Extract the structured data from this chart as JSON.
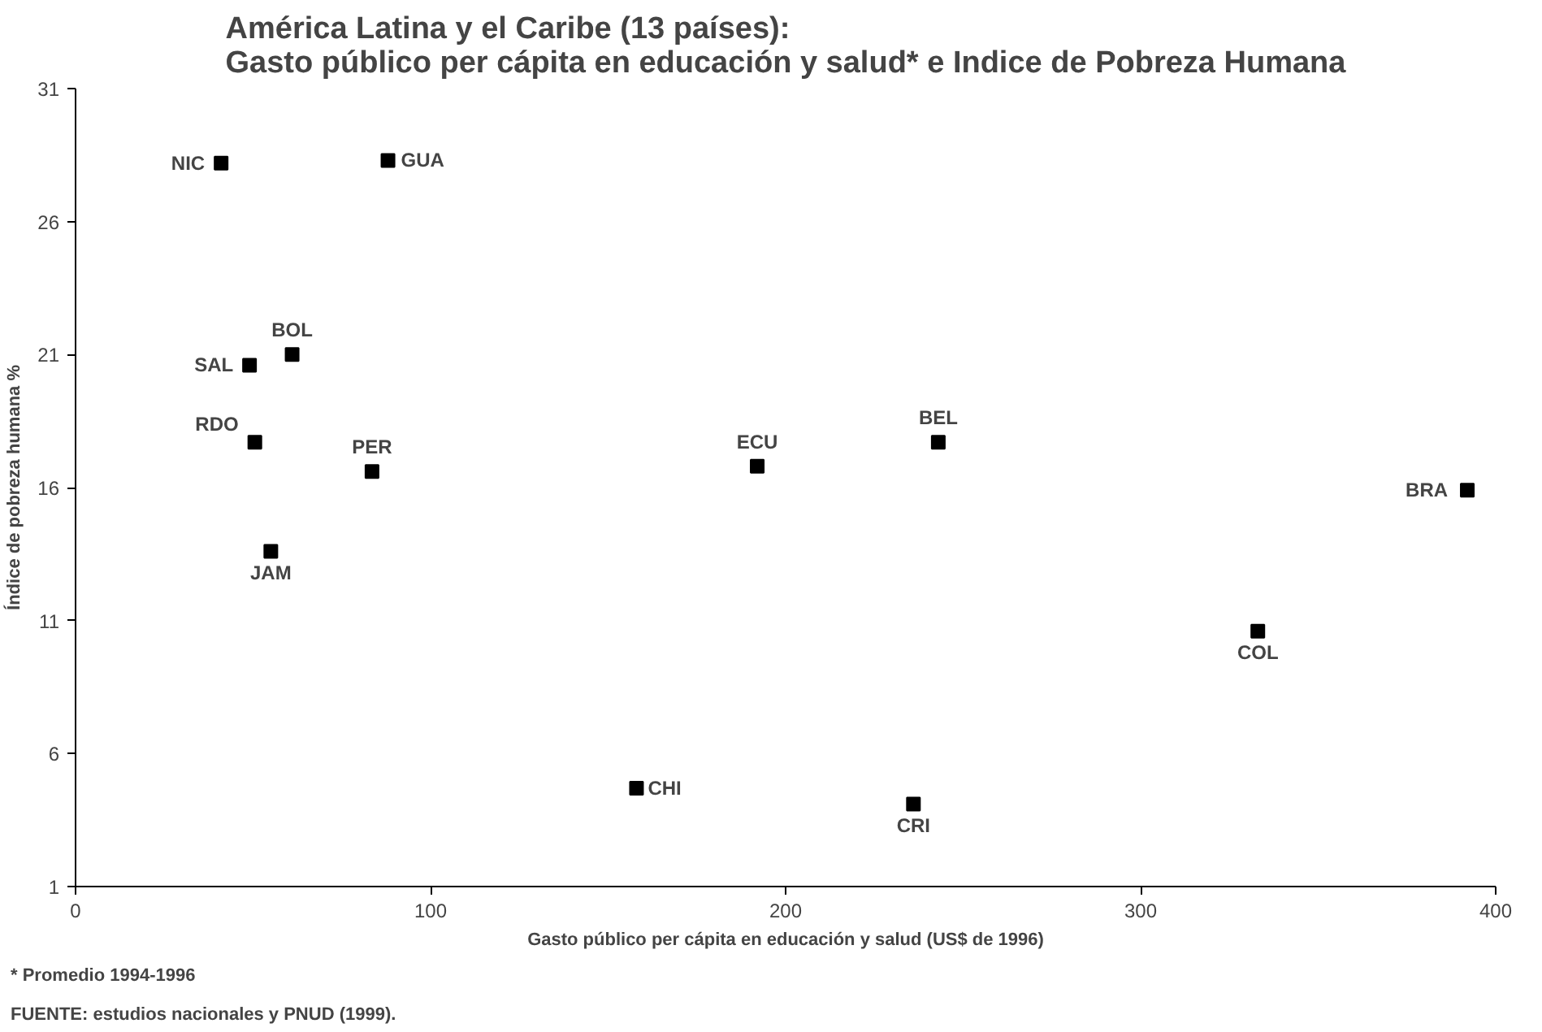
{
  "chart_data": {
    "type": "scatter",
    "title": "América Latina y el Caribe (13 países):\nGasto público per cápita en educación y salud* e Indice de Pobreza Humana",
    "xlabel": "Gasto público per cápita en educación y salud (US$ de 1996)",
    "ylabel": "Índice de pobreza humana %",
    "x": [
      41,
      88,
      61,
      49,
      50.5,
      83.5,
      55,
      192,
      243,
      392,
      333,
      158,
      236
    ],
    "series": [
      {
        "color": "#000000",
        "values": [
          28.2,
          28.3,
          21.0,
          20.6,
          17.7,
          16.6,
          13.6,
          16.8,
          17.7,
          15.9,
          10.6,
          4.7,
          4.1
        ]
      }
    ],
    "annotations": [
      {
        "text": "NIC",
        "x": 41,
        "y": 28.2
      },
      {
        "text": "GUA",
        "x": 88,
        "y": 28.3
      },
      {
        "text": "BOL",
        "x": 61,
        "y": 21.0
      },
      {
        "text": "SAL",
        "x": 49,
        "y": 20.6
      },
      {
        "text": "RDO",
        "x": 50.5,
        "y": 17.7
      },
      {
        "text": "PER",
        "x": 83.5,
        "y": 16.6
      },
      {
        "text": "JAM",
        "x": 55,
        "y": 13.6
      },
      {
        "text": "ECU",
        "x": 192,
        "y": 16.8
      },
      {
        "text": "BEL",
        "x": 243,
        "y": 17.7
      },
      {
        "text": "BRA",
        "x": 392,
        "y": 15.9
      },
      {
        "text": "COL",
        "x": 333,
        "y": 10.6
      },
      {
        "text": "CHI",
        "x": 158,
        "y": 4.7
      },
      {
        "text": "CRI",
        "x": 236,
        "y": 4.1
      },
      "* Promedio 1994-1996",
      "FUENTE: estudios nacionales y PNUD (1999)."
    ],
    "xlim": [
      0,
      400
    ],
    "xticks": [
      0,
      100,
      200,
      300,
      400
    ],
    "ylim": [
      1,
      31
    ],
    "yticks": [
      1,
      6,
      11,
      16,
      21,
      26,
      31
    ],
    "marker": "square",
    "grid": false
  }
}
